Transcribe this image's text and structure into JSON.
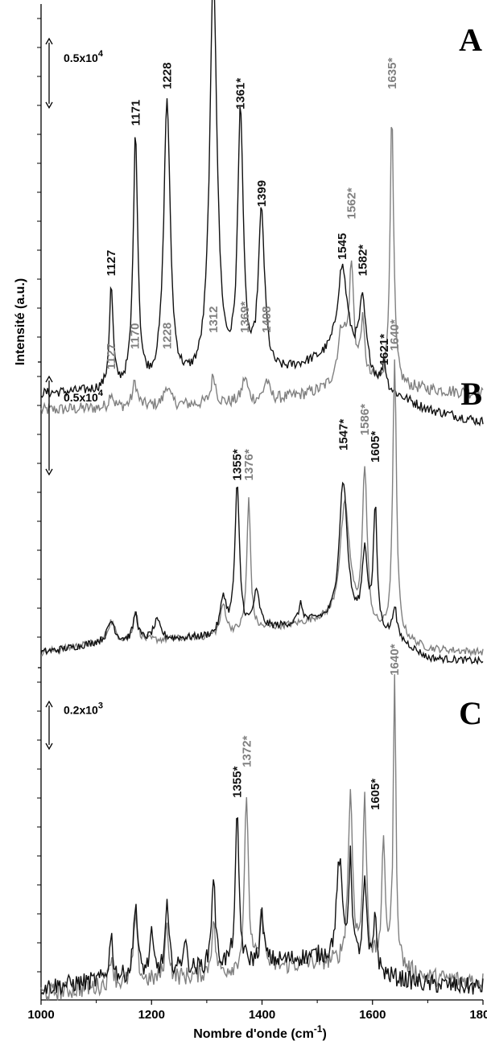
{
  "chart_data": {
    "type": "line",
    "xlabel": "Nombre d'onde (cm",
    "xlabel_sup": "-1",
    "xlabel_close": ")",
    "ylabel": "Intensité (a.u.)",
    "xlim": [
      1000,
      1800
    ],
    "x_ticks": [
      "1000",
      "1200",
      "1400",
      "1600",
      "1800"
    ],
    "colors": {
      "black_series": "#111111",
      "gray_series": "#808080"
    },
    "panels": [
      {
        "letter": "A",
        "scale_bar": {
          "mantissa": "0.5x10",
          "exponent": "4"
        },
        "series": [
          {
            "color": "black",
            "baseline": [
              [
                1000,
                0.07
              ],
              [
                1200,
                0.08
              ],
              [
                1400,
                0.1
              ],
              [
                1500,
                0.15
              ],
              [
                1550,
                0.18
              ],
              [
                1620,
                0.08
              ],
              [
                1700,
                0.03
              ],
              [
                1800,
                0.0
              ]
            ],
            "peaks": [
              [
                1127,
                0.25,
                4
              ],
              [
                1171,
                0.62,
                5
              ],
              [
                1228,
                0.7,
                7
              ],
              [
                1312,
                1.0,
                8
              ],
              [
                1361,
                0.65,
                6
              ],
              [
                1399,
                0.4,
                7
              ],
              [
                1545,
                0.2,
                10
              ],
              [
                1582,
                0.16,
                7
              ],
              [
                1621,
                0.07,
                4
              ]
            ],
            "noise": 0.012,
            "labels": [
              {
                "text": "1127",
                "x": 1127,
                "y": 0.36
              },
              {
                "text": "1171",
                "x": 1171,
                "y": 0.73
              },
              {
                "text": "1228",
                "x": 1228,
                "y": 0.82
              },
              {
                "text": "1312",
                "x": 1312,
                "y": 1.12
              },
              {
                "text": "1361*",
                "x": 1361,
                "y": 0.77
              },
              {
                "text": "1399",
                "x": 1399,
                "y": 0.53
              },
              {
                "text": "1545",
                "x": 1545,
                "y": 0.4
              },
              {
                "text": "1582*",
                "x": 1582,
                "y": 0.36
              },
              {
                "text": "1621*",
                "x": 1621,
                "y": 0.14
              }
            ]
          },
          {
            "color": "gray",
            "baseline": [
              [
                1000,
                0.03
              ],
              [
                1400,
                0.05
              ],
              [
                1540,
                0.08
              ],
              [
                1600,
                0.09
              ],
              [
                1700,
                0.08
              ],
              [
                1800,
                0.07
              ]
            ],
            "peaks": [
              [
                1127,
                0.04,
                4
              ],
              [
                1170,
                0.06,
                5
              ],
              [
                1228,
                0.05,
                6
              ],
              [
                1312,
                0.07,
                5
              ],
              [
                1369,
                0.06,
                6
              ],
              [
                1408,
                0.05,
                6
              ],
              [
                1545,
                0.14,
                10
              ],
              [
                1562,
                0.27,
                5
              ],
              [
                1582,
                0.14,
                5
              ],
              [
                1635,
                0.66,
                4
              ]
            ],
            "noise": 0.015,
            "labels": [
              {
                "text": "1127",
                "x": 1127,
                "y": 0.13
              },
              {
                "text": "1170",
                "x": 1170,
                "y": 0.18
              },
              {
                "text": "1228",
                "x": 1228,
                "y": 0.18
              },
              {
                "text": "1312",
                "x": 1312,
                "y": 0.22
              },
              {
                "text": "1369*",
                "x": 1369,
                "y": 0.22
              },
              {
                "text": "1408",
                "x": 1408,
                "y": 0.22
              },
              {
                "text": "1562*",
                "x": 1562,
                "y": 0.5
              },
              {
                "text": "1635*",
                "x": 1635,
                "y": 0.82
              }
            ]
          }
        ]
      },
      {
        "letter": "B",
        "scale_bar": {
          "mantissa": "0.5x10",
          "exponent": "4"
        },
        "series": [
          {
            "color": "black",
            "baseline": [
              [
                1000,
                0.05
              ],
              [
                1100,
                0.08
              ],
              [
                1300,
                0.1
              ],
              [
                1500,
                0.15
              ],
              [
                1640,
                0.1
              ],
              [
                1700,
                0.03
              ],
              [
                1800,
                0.02
              ]
            ],
            "peaks": [
              [
                1127,
                0.07,
                8
              ],
              [
                1171,
                0.09,
                5
              ],
              [
                1210,
                0.06,
                8
              ],
              [
                1330,
                0.12,
                6
              ],
              [
                1355,
                0.48,
                5
              ],
              [
                1390,
                0.12,
                7
              ],
              [
                1470,
                0.06,
                5
              ],
              [
                1547,
                0.48,
                9
              ],
              [
                1586,
                0.25,
                6
              ],
              [
                1605,
                0.4,
                4
              ],
              [
                1640,
                0.1,
                4
              ]
            ],
            "noise": 0.012,
            "labels": [
              {
                "text": "1355*",
                "x": 1355,
                "y": 0.62
              },
              {
                "text": "1547*",
                "x": 1547,
                "y": 0.72
              },
              {
                "text": "1605*",
                "x": 1605,
                "y": 0.68
              }
            ]
          },
          {
            "color": "gray",
            "baseline": [
              [
                1000,
                0.05
              ],
              [
                1100,
                0.08
              ],
              [
                1300,
                0.1
              ],
              [
                1500,
                0.15
              ],
              [
                1640,
                0.1
              ],
              [
                1700,
                0.06
              ],
              [
                1800,
                0.05
              ]
            ],
            "peaks": [
              [
                1127,
                0.07,
                8
              ],
              [
                1171,
                0.1,
                5
              ],
              [
                1330,
                0.1,
                6
              ],
              [
                1376,
                0.44,
                4
              ],
              [
                1550,
                0.4,
                11
              ],
              [
                1586,
                0.52,
                5
              ],
              [
                1640,
                0.91,
                4
              ]
            ],
            "noise": 0.012,
            "labels": [
              {
                "text": "1376*",
                "x": 1376,
                "y": 0.62
              },
              {
                "text": "1586*",
                "x": 1586,
                "y": 0.77
              },
              {
                "text": "1640*",
                "x": 1640,
                "y": 1.05
              }
            ]
          }
        ]
      },
      {
        "letter": "C",
        "scale_bar": {
          "mantissa": "0.2x10",
          "exponent": "3"
        },
        "series": [
          {
            "color": "black",
            "baseline": [
              [
                1000,
                0.02
              ],
              [
                1300,
                0.08
              ],
              [
                1500,
                0.12
              ],
              [
                1640,
                0.05
              ],
              [
                1700,
                0.03
              ],
              [
                1800,
                0.02
              ]
            ],
            "peaks": [
              [
                1127,
                0.14,
                4
              ],
              [
                1171,
                0.25,
                4
              ],
              [
                1200,
                0.12,
                4
              ],
              [
                1228,
                0.21,
                4
              ],
              [
                1260,
                0.1,
                4
              ],
              [
                1312,
                0.3,
                4
              ],
              [
                1355,
                0.48,
                4
              ],
              [
                1400,
                0.15,
                4
              ],
              [
                1540,
                0.33,
                6
              ],
              [
                1560,
                0.33,
                4
              ],
              [
                1586,
                0.28,
                4
              ],
              [
                1605,
                0.2,
                3
              ]
            ],
            "noise": 0.03,
            "labels": [
              {
                "text": "1355*",
                "x": 1355,
                "y": 0.64
              },
              {
                "text": "1605*",
                "x": 1605,
                "y": 0.6
              }
            ]
          },
          {
            "color": "gray",
            "baseline": [
              [
                1000,
                0.0
              ],
              [
                1300,
                0.06
              ],
              [
                1500,
                0.1
              ],
              [
                1640,
                0.08
              ],
              [
                1700,
                0.05
              ],
              [
                1800,
                0.04
              ]
            ],
            "peaks": [
              [
                1127,
                0.1,
                4
              ],
              [
                1171,
                0.22,
                4
              ],
              [
                1228,
                0.18,
                4
              ],
              [
                1312,
                0.17,
                4
              ],
              [
                1372,
                0.58,
                4
              ],
              [
                1400,
                0.2,
                4
              ],
              [
                1560,
                0.55,
                5
              ],
              [
                1586,
                0.53,
                4
              ],
              [
                1620,
                0.38,
                4
              ],
              [
                1640,
                0.92,
                3
              ]
            ],
            "noise": 0.03,
            "labels": [
              {
                "text": "1372*",
                "x": 1372,
                "y": 0.74
              },
              {
                "text": "1640*",
                "x": 1640,
                "y": 1.04
              }
            ]
          }
        ]
      }
    ]
  }
}
